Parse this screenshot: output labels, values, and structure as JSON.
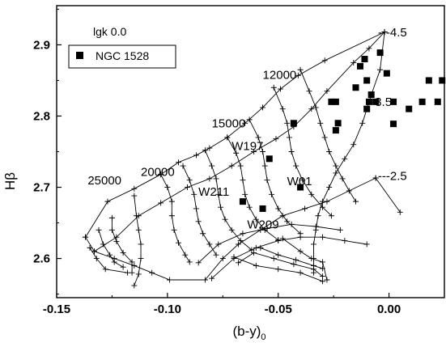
{
  "chart_data": {
    "type": "scatter",
    "title": "",
    "xlabel": "(b-y)",
    "xlabel_subscript": "0",
    "ylabel": "Hβ",
    "xlim": [
      -0.15,
      0.025
    ],
    "ylim": [
      2.545,
      2.955
    ],
    "x_ticks": [
      -0.15,
      -0.1,
      -0.05,
      0.0
    ],
    "x_tick_labels": [
      "-0.15",
      "-0.10",
      "-0.05",
      "0.00"
    ],
    "y_ticks": [
      2.6,
      2.7,
      2.8,
      2.9
    ],
    "y_tick_labels": [
      "2.6",
      "2.7",
      "2.8",
      "2.9"
    ],
    "grid": false,
    "legend_position": "top-left",
    "legend_frame_label": "lgk 0.0",
    "series": [
      {
        "name": "NGC 1528",
        "marker": "square",
        "color": "#000000",
        "points": [
          [
            -0.004,
            2.889
          ],
          [
            -0.011,
            2.88
          ],
          [
            -0.013,
            2.87
          ],
          [
            -0.001,
            2.86
          ],
          [
            -0.01,
            2.85
          ],
          [
            0.018,
            2.85
          ],
          [
            0.024,
            2.85
          ],
          [
            -0.015,
            2.84
          ],
          [
            -0.008,
            2.83
          ],
          [
            -0.026,
            2.82
          ],
          [
            -0.024,
            2.82
          ],
          [
            -0.009,
            2.82
          ],
          [
            -0.006,
            2.82
          ],
          [
            0.002,
            2.82
          ],
          [
            0.015,
            2.82
          ],
          [
            0.022,
            2.82
          ],
          [
            -0.01,
            2.81
          ],
          [
            0.009,
            2.81
          ],
          [
            -0.043,
            2.79
          ],
          [
            -0.023,
            2.79
          ],
          [
            0.002,
            2.789
          ],
          [
            -0.024,
            2.78
          ],
          [
            -0.054,
            2.74
          ],
          [
            -0.04,
            2.7
          ],
          [
            -0.066,
            2.68
          ],
          [
            -0.057,
            2.67
          ]
        ]
      }
    ],
    "grid_lines": {
      "marker": "plus",
      "curves": [
        [
          [
            -0.137,
            2.63
          ],
          [
            -0.133,
            2.61
          ],
          [
            -0.124,
            2.6
          ],
          [
            -0.115,
            2.59
          ],
          [
            -0.107,
            2.58
          ],
          [
            -0.099,
            2.57
          ],
          [
            -0.083,
            2.57
          ],
          [
            -0.075,
            2.6
          ],
          [
            -0.068,
            2.62
          ],
          [
            -0.058,
            2.64
          ],
          [
            -0.048,
            2.66
          ],
          [
            -0.038,
            2.67
          ],
          [
            -0.028,
            2.68
          ],
          [
            -0.006,
            2.713
          ]
        ],
        [
          [
            -0.133,
            2.61
          ],
          [
            -0.123,
            2.63
          ],
          [
            -0.113,
            2.66
          ],
          [
            -0.103,
            2.678
          ],
          [
            -0.091,
            2.7
          ],
          [
            -0.081,
            2.712
          ],
          [
            -0.071,
            2.73
          ],
          [
            -0.061,
            2.75
          ],
          [
            -0.051,
            2.768
          ],
          [
            -0.043,
            2.785
          ],
          [
            -0.035,
            2.81
          ],
          [
            -0.028,
            2.835
          ],
          [
            -0.016,
            2.875
          ],
          [
            -0.009,
            2.895
          ],
          [
            -0.002,
            2.918
          ]
        ],
        [
          [
            -0.002,
            2.918
          ],
          [
            -0.029,
            2.878
          ],
          [
            -0.041,
            2.857
          ],
          [
            -0.049,
            2.838
          ],
          [
            -0.057,
            2.812
          ],
          [
            -0.065,
            2.79
          ],
          [
            -0.073,
            2.77
          ],
          [
            -0.081,
            2.755
          ],
          [
            -0.087,
            2.745
          ],
          [
            -0.095,
            2.735
          ],
          [
            -0.103,
            2.718
          ],
          [
            -0.115,
            2.698
          ],
          [
            -0.127,
            2.68
          ],
          [
            -0.137,
            2.63
          ]
        ],
        [
          [
            -0.002,
            2.918
          ],
          [
            -0.004,
            2.865
          ],
          [
            -0.008,
            2.83
          ],
          [
            -0.012,
            2.79
          ],
          [
            -0.016,
            2.76
          ],
          [
            -0.02,
            2.74
          ],
          [
            -0.024,
            2.72
          ],
          [
            -0.027,
            2.7
          ],
          [
            -0.03,
            2.68
          ],
          [
            -0.032,
            2.66
          ],
          [
            -0.033,
            2.64
          ],
          [
            -0.034,
            2.62
          ],
          [
            -0.034,
            2.6
          ],
          [
            -0.034,
            2.58
          ]
        ],
        [
          [
            -0.006,
            2.713
          ],
          [
            0.005,
            2.665
          ]
        ],
        [
          [
            -0.115,
            2.688
          ],
          [
            -0.114,
            2.66
          ],
          [
            -0.113,
            2.64
          ],
          [
            -0.112,
            2.62
          ],
          [
            -0.112,
            2.6
          ],
          [
            -0.113,
            2.578
          ],
          [
            -0.115,
            2.562
          ]
        ],
        [
          [
            -0.125,
            2.657
          ],
          [
            -0.125,
            2.64
          ],
          [
            -0.123,
            2.624
          ],
          [
            -0.12,
            2.608
          ],
          [
            -0.116,
            2.595
          ],
          [
            -0.116,
            2.58
          ]
        ],
        [
          [
            -0.131,
            2.64
          ],
          [
            -0.129,
            2.62
          ],
          [
            -0.126,
            2.605
          ],
          [
            -0.124,
            2.595
          ],
          [
            -0.12,
            2.588
          ]
        ],
        [
          [
            -0.135,
            2.615
          ],
          [
            -0.132,
            2.6
          ],
          [
            -0.128,
            2.585
          ],
          [
            -0.118,
            2.58
          ]
        ],
        [
          [
            -0.103,
            2.718
          ],
          [
            -0.1,
            2.7
          ],
          [
            -0.098,
            2.68
          ],
          [
            -0.098,
            2.66
          ],
          [
            -0.097,
            2.64
          ],
          [
            -0.095,
            2.622
          ],
          [
            -0.092,
            2.605
          ],
          [
            -0.09,
            2.595
          ]
        ],
        [
          [
            -0.093,
            2.73
          ],
          [
            -0.09,
            2.71
          ],
          [
            -0.088,
            2.69
          ],
          [
            -0.087,
            2.67
          ],
          [
            -0.086,
            2.652
          ],
          [
            -0.084,
            2.635
          ],
          [
            -0.081,
            2.62
          ],
          [
            -0.078,
            2.605
          ]
        ],
        [
          [
            -0.083,
            2.752
          ],
          [
            -0.08,
            2.73
          ],
          [
            -0.078,
            2.712
          ],
          [
            -0.077,
            2.69
          ],
          [
            -0.076,
            2.672
          ],
          [
            -0.074,
            2.655
          ],
          [
            -0.071,
            2.64
          ],
          [
            -0.067,
            2.625
          ],
          [
            -0.062,
            2.612
          ]
        ],
        [
          [
            -0.073,
            2.77
          ],
          [
            -0.069,
            2.748
          ],
          [
            -0.067,
            2.73
          ],
          [
            -0.066,
            2.71
          ],
          [
            -0.065,
            2.69
          ],
          [
            -0.063,
            2.672
          ],
          [
            -0.06,
            2.655
          ],
          [
            -0.056,
            2.64
          ],
          [
            -0.05,
            2.626
          ]
        ],
        [
          [
            -0.063,
            2.795
          ],
          [
            -0.059,
            2.77
          ],
          [
            -0.057,
            2.75
          ],
          [
            -0.056,
            2.73
          ],
          [
            -0.055,
            2.71
          ],
          [
            -0.053,
            2.69
          ],
          [
            -0.05,
            2.67
          ],
          [
            -0.046,
            2.652
          ],
          [
            -0.04,
            2.635
          ]
        ],
        [
          [
            -0.052,
            2.84
          ],
          [
            -0.048,
            2.81
          ],
          [
            -0.046,
            2.79
          ],
          [
            -0.045,
            2.77
          ],
          [
            -0.044,
            2.75
          ],
          [
            -0.042,
            2.73
          ],
          [
            -0.039,
            2.71
          ],
          [
            -0.035,
            2.69
          ],
          [
            -0.03,
            2.672
          ],
          [
            -0.026,
            2.66
          ]
        ],
        [
          [
            -0.04,
            2.865
          ],
          [
            -0.036,
            2.835
          ],
          [
            -0.033,
            2.812
          ],
          [
            -0.031,
            2.79
          ],
          [
            -0.029,
            2.77
          ],
          [
            -0.027,
            2.75
          ],
          [
            -0.024,
            2.73
          ],
          [
            -0.021,
            2.712
          ],
          [
            -0.018,
            2.695
          ],
          [
            -0.015,
            2.68
          ]
        ],
        [
          [
            -0.08,
            2.572
          ],
          [
            -0.07,
            2.6
          ],
          [
            -0.06,
            2.615
          ],
          [
            -0.05,
            2.625
          ],
          [
            -0.04,
            2.63
          ],
          [
            -0.03,
            2.63
          ],
          [
            -0.02,
            2.625
          ],
          [
            -0.01,
            2.62
          ]
        ],
        [
          [
            -0.086,
            2.594
          ],
          [
            -0.077,
            2.62
          ],
          [
            -0.066,
            2.635
          ],
          [
            -0.055,
            2.642
          ],
          [
            -0.044,
            2.648
          ],
          [
            -0.033,
            2.645
          ],
          [
            -0.022,
            2.64
          ]
        ],
        [
          [
            -0.068,
            2.594
          ],
          [
            -0.061,
            2.608
          ],
          [
            -0.052,
            2.6
          ],
          [
            -0.043,
            2.592
          ],
          [
            -0.034,
            2.585
          ],
          [
            -0.03,
            2.575
          ]
        ],
        [
          [
            -0.058,
            2.615
          ],
          [
            -0.05,
            2.605
          ],
          [
            -0.042,
            2.598
          ],
          [
            -0.034,
            2.59
          ],
          [
            -0.03,
            2.586
          ]
        ],
        [
          [
            -0.048,
            2.628
          ],
          [
            -0.04,
            2.61
          ],
          [
            -0.035,
            2.6
          ],
          [
            -0.03,
            2.595
          ],
          [
            -0.028,
            2.57
          ]
        ],
        [
          [
            -0.07,
            2.602
          ],
          [
            -0.06,
            2.59
          ],
          [
            -0.05,
            2.585
          ],
          [
            -0.04,
            2.58
          ],
          [
            -0.03,
            2.568
          ]
        ]
      ]
    },
    "annotations": [
      {
        "text": "---4.5",
        "x": -0.005,
        "y": 2.912
      },
      {
        "text": "12000",
        "x": -0.057,
        "y": 2.852
      },
      {
        "text": "--3.5",
        "x": -0.01,
        "y": 2.814
      },
      {
        "text": "15000",
        "x": -0.08,
        "y": 2.784
      },
      {
        "text": "W197",
        "x": -0.071,
        "y": 2.752
      },
      {
        "text": "20000",
        "x": -0.112,
        "y": 2.716
      },
      {
        "text": "25000",
        "x": -0.136,
        "y": 2.704
      },
      {
        "text": "W01",
        "x": -0.046,
        "y": 2.703
      },
      {
        "text": "---2.5",
        "x": -0.005,
        "y": 2.71
      },
      {
        "text": "W211",
        "x": -0.086,
        "y": 2.688
      },
      {
        "text": "W209",
        "x": -0.064,
        "y": 2.642
      }
    ]
  }
}
